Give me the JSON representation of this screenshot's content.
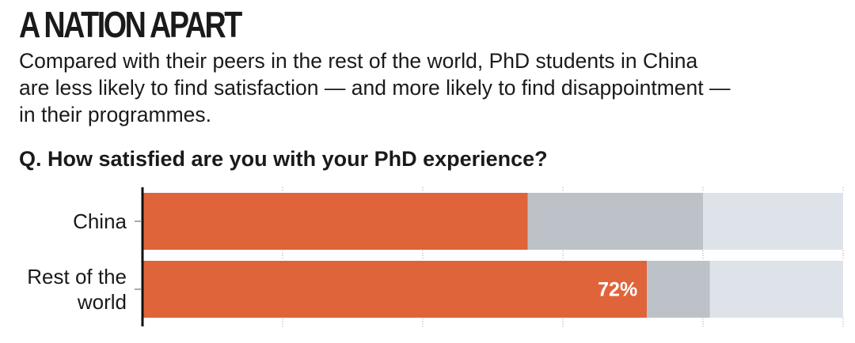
{
  "chart_data": {
    "type": "stacked-bar-horizontal",
    "title": "A NATION APART",
    "subtitle": "Compared with their peers in the rest of the world, PhD students in China are less likely to find satisfaction — and more likely to find disappointment — in their programmes.",
    "question": "Q. How satisfied are you with your PhD experience?",
    "categories": [
      "China",
      "Rest of the world"
    ],
    "series": [
      {
        "color": "#e0643a",
        "values": [
          55,
          72
        ],
        "value_labels": [
          null,
          "72%"
        ]
      },
      {
        "color": "#bdc2c8",
        "values": [
          25,
          9
        ]
      },
      {
        "color": "#dee3ea",
        "values": [
          20,
          19
        ]
      }
    ],
    "xlim": [
      0,
      100
    ],
    "xticks": [
      0,
      20,
      40,
      60,
      80,
      100
    ]
  }
}
